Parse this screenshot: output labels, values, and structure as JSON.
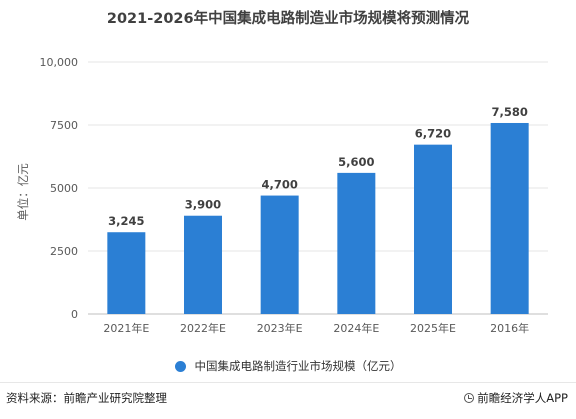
{
  "chart_data": {
    "type": "bar",
    "title": "2021-2026年中国集成电路制造业市场规模将预测情况",
    "ylabel": "单位：亿元",
    "xlabel": "",
    "categories": [
      "2021年E",
      "2022年E",
      "2023年E",
      "2024年E",
      "2025年E",
      "2016年"
    ],
    "series": [
      {
        "name": "中国集成电路制造行业市场规模（亿元）",
        "values": [
          3245,
          3900,
          4700,
          5600,
          6720,
          7580
        ],
        "labels": [
          "3,245",
          "3,900",
          "4,700",
          "5,600",
          "6,720",
          "7,580"
        ]
      }
    ],
    "ylim": [
      0,
      10000
    ],
    "yticks": [
      0,
      2500,
      5000,
      7500,
      10000
    ],
    "ytick_labels": [
      "0",
      "2500",
      "5000",
      "7500",
      "10,000"
    ],
    "grid": "horizontal",
    "legend": "bottom",
    "bar_color": "#2b7fd4"
  },
  "footer": {
    "source": "资料来源：前瞻产业研究院整理",
    "brand": "前瞻经济学人APP"
  }
}
